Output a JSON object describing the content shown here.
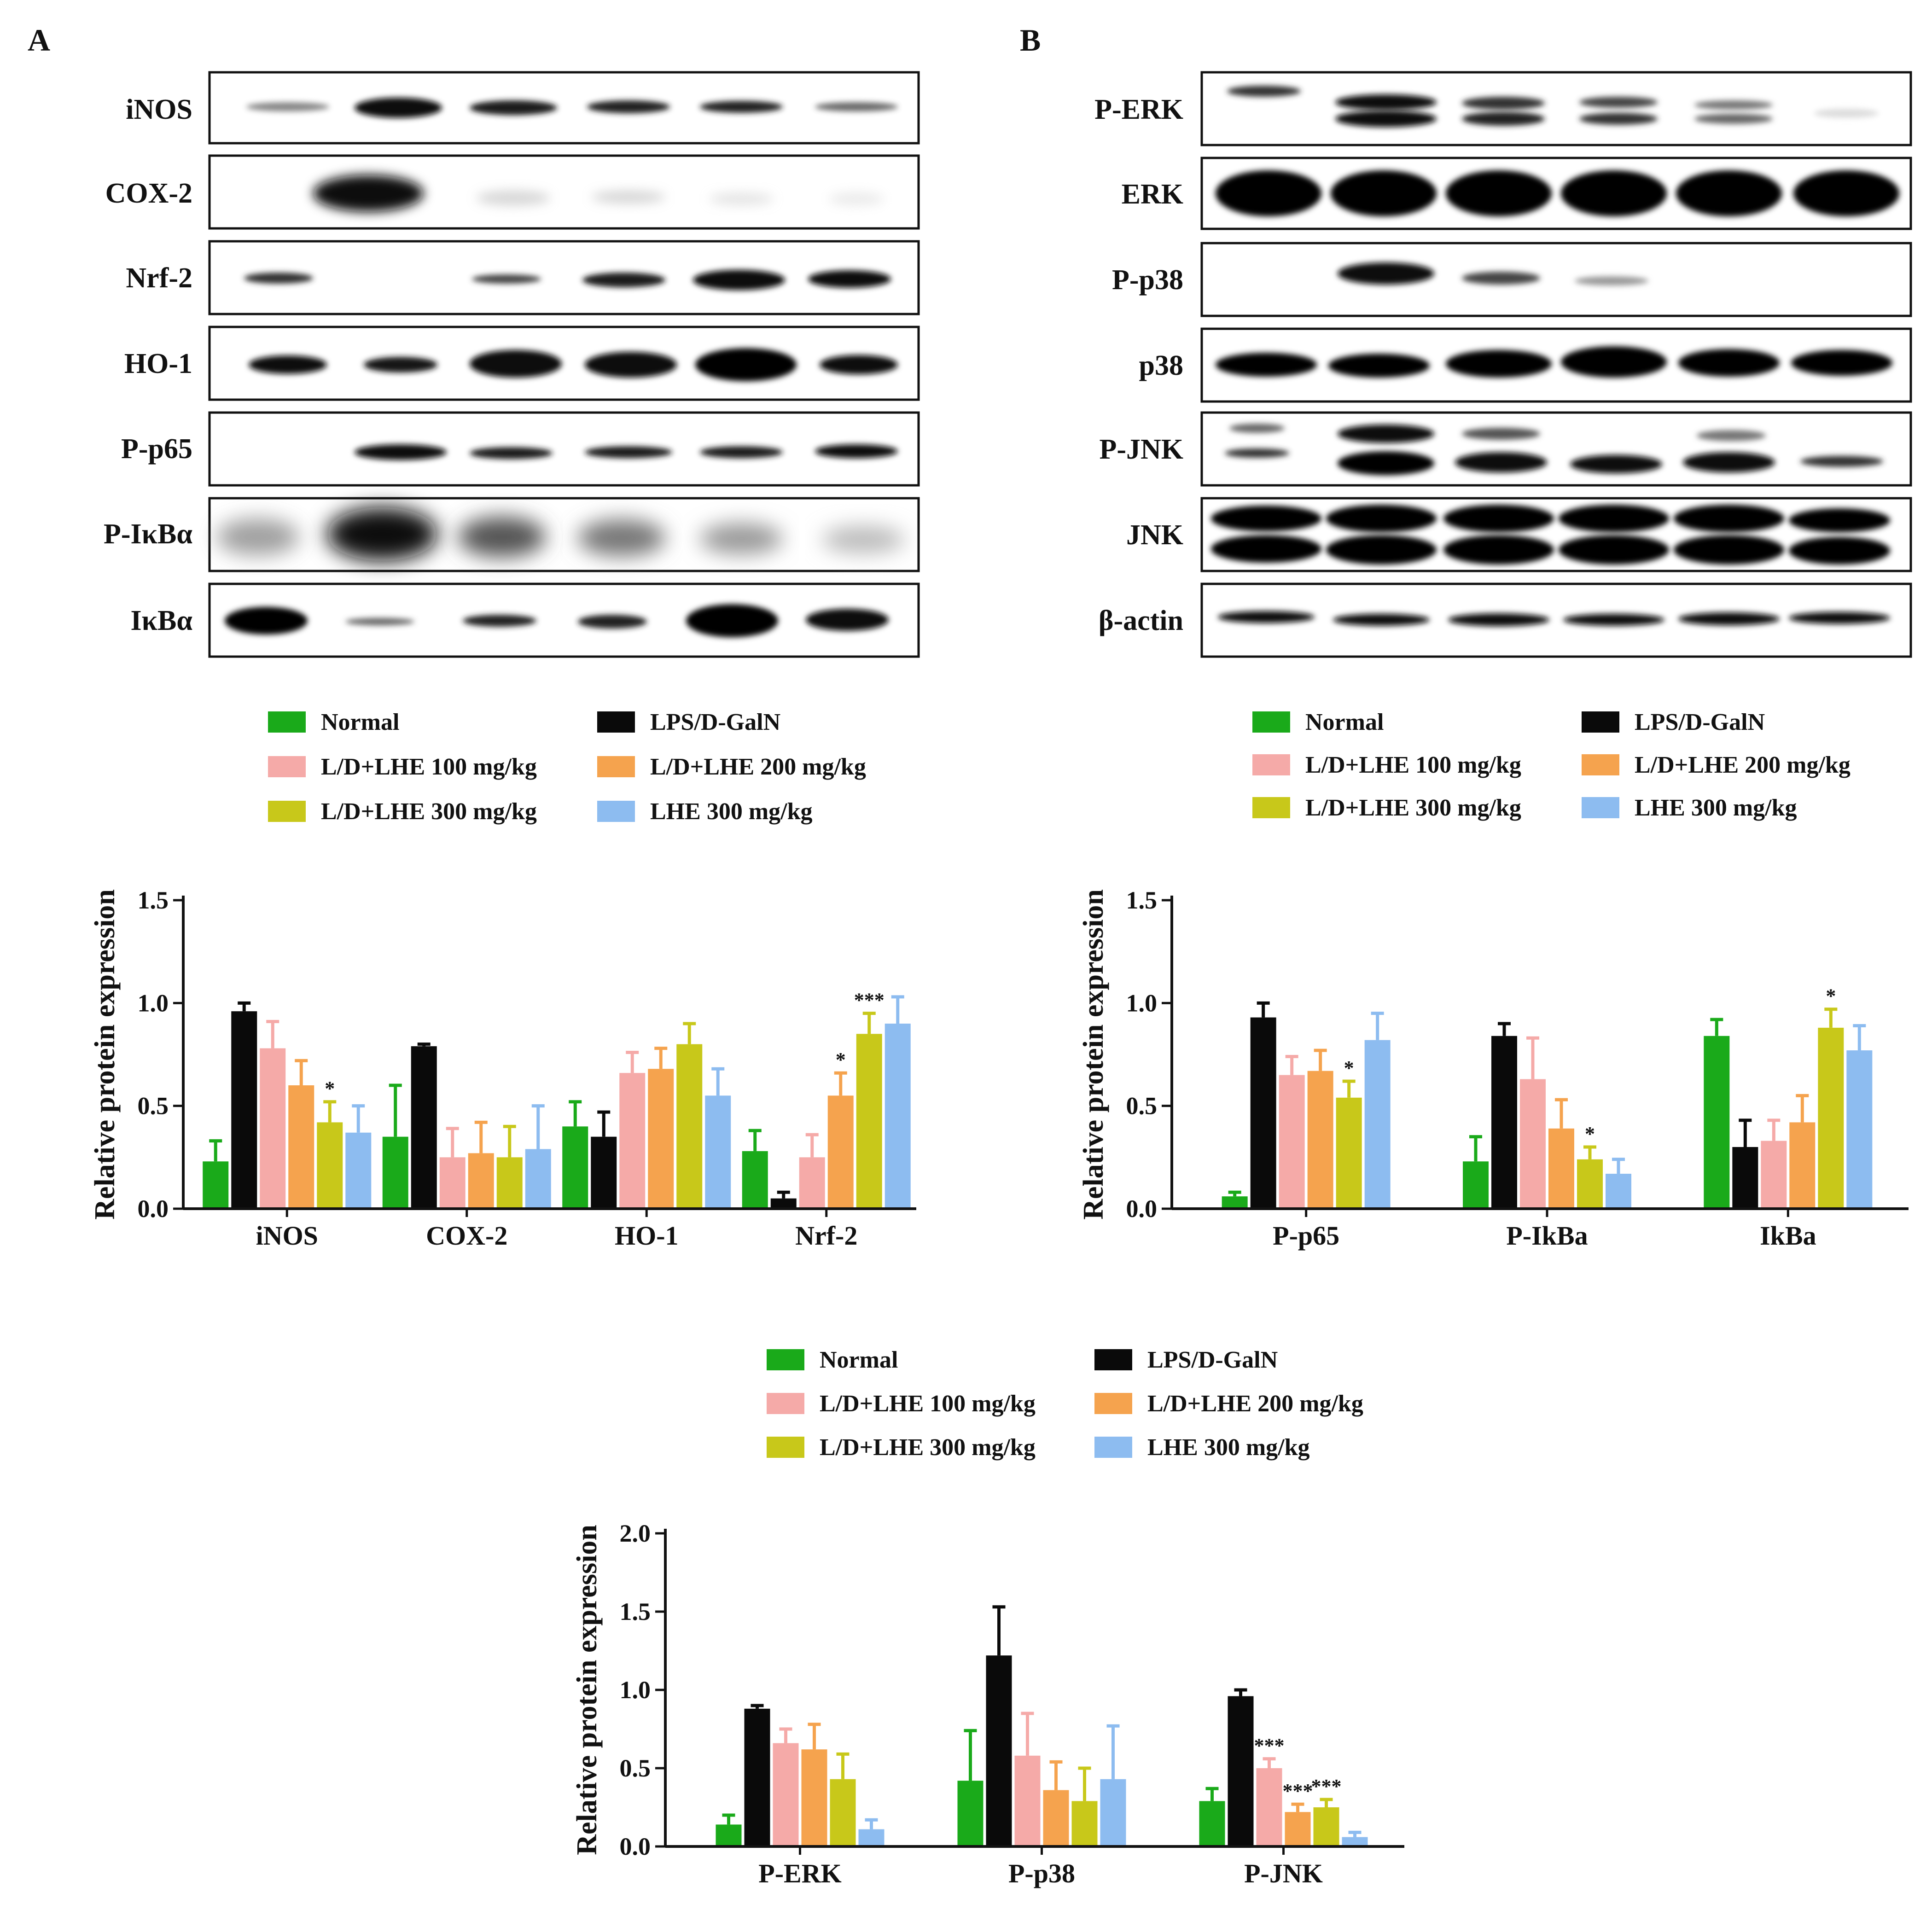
{
  "panels": [
    {
      "label": "A",
      "blot_labels": [
        "iNOS",
        "COX-2",
        "Nrf-2",
        "HO-1",
        "P-p65",
        "P-IκBα",
        "IκBα"
      ]
    },
    {
      "label": "B",
      "blot_labels": [
        "P-ERK",
        "ERK",
        "P-p38",
        "p38",
        "P-JNK",
        "JNK",
        "β-actin"
      ]
    }
  ],
  "legend": {
    "items": [
      {
        "name": "Normal",
        "color": "#1aaa1a"
      },
      {
        "name": "LPS/D-GalN",
        "color": "#0a0a0a"
      },
      {
        "name": "L/D+LHE 100 mg/kg",
        "color": "#f5aaa8"
      },
      {
        "name": "L/D+LHE 200 mg/kg",
        "color": "#f5a34e"
      },
      {
        "name": "L/D+LHE 300 mg/kg",
        "color": "#c8c81a"
      },
      {
        "name": "LHE 300 mg/kg",
        "color": "#8dbcf0"
      }
    ]
  },
  "chart_data": [
    {
      "type": "bar",
      "ylabel": "Relative protein expression",
      "ylim": [
        0,
        1.5
      ],
      "yticks": [
        "0.0",
        "0.5",
        "1.0",
        "1.5"
      ],
      "categories": [
        "iNOS",
        "COX-2",
        "HO-1",
        "Nrf-2"
      ],
      "series": [
        {
          "name": "Normal",
          "values": [
            0.23,
            0.35,
            0.4,
            0.28
          ],
          "errors": [
            0.1,
            0.25,
            0.12,
            0.1
          ]
        },
        {
          "name": "LPS/D-GalN",
          "values": [
            0.96,
            0.79,
            0.35,
            0.05
          ],
          "errors": [
            0.04,
            0.01,
            0.12,
            0.03
          ]
        },
        {
          "name": "L/D+LHE 100 mg/kg",
          "values": [
            0.78,
            0.25,
            0.66,
            0.25
          ],
          "errors": [
            0.13,
            0.14,
            0.1,
            0.11
          ]
        },
        {
          "name": "L/D+LHE 200 mg/kg",
          "values": [
            0.6,
            0.27,
            0.68,
            0.55
          ],
          "errors": [
            0.12,
            0.15,
            0.1,
            0.11
          ]
        },
        {
          "name": "L/D+LHE 300 mg/kg",
          "values": [
            0.42,
            0.25,
            0.8,
            0.85
          ],
          "errors": [
            0.1,
            0.15,
            0.1,
            0.1
          ]
        },
        {
          "name": "LHE 300 mg/kg",
          "values": [
            0.37,
            0.29,
            0.55,
            0.9
          ],
          "errors": [
            0.13,
            0.21,
            0.13,
            0.13
          ]
        }
      ],
      "annotations": [
        {
          "category": "iNOS",
          "series": "L/D+LHE 300 mg/kg",
          "text": "*"
        },
        {
          "category": "Nrf-2",
          "series": "L/D+LHE 200 mg/kg",
          "text": "*"
        },
        {
          "category": "Nrf-2",
          "series": "L/D+LHE 300 mg/kg",
          "text": "***"
        }
      ]
    },
    {
      "type": "bar",
      "ylabel": "Relative protein expression",
      "ylim": [
        0,
        1.5
      ],
      "yticks": [
        "0.0",
        "0.5",
        "1.0",
        "1.5"
      ],
      "categories": [
        "P-p65",
        "P-IkBa",
        "IkBa"
      ],
      "series": [
        {
          "name": "Normal",
          "values": [
            0.06,
            0.23,
            0.84
          ],
          "errors": [
            0.02,
            0.12,
            0.08
          ]
        },
        {
          "name": "LPS/D-GalN",
          "values": [
            0.93,
            0.84,
            0.3
          ],
          "errors": [
            0.07,
            0.06,
            0.13
          ]
        },
        {
          "name": "L/D+LHE 100 mg/kg",
          "values": [
            0.65,
            0.63,
            0.33
          ],
          "errors": [
            0.09,
            0.2,
            0.1
          ]
        },
        {
          "name": "L/D+LHE 200 mg/kg",
          "values": [
            0.67,
            0.39,
            0.42
          ],
          "errors": [
            0.1,
            0.14,
            0.13
          ]
        },
        {
          "name": "L/D+LHE 300 mg/kg",
          "values": [
            0.54,
            0.24,
            0.88
          ],
          "errors": [
            0.08,
            0.06,
            0.09
          ]
        },
        {
          "name": "LHE 300 mg/kg",
          "values": [
            0.82,
            0.17,
            0.77
          ],
          "errors": [
            0.13,
            0.07,
            0.12
          ]
        }
      ],
      "annotations": [
        {
          "category": "P-p65",
          "series": "L/D+LHE 300 mg/kg",
          "text": "*"
        },
        {
          "category": "P-IkBa",
          "series": "L/D+LHE 300 mg/kg",
          "text": "*"
        },
        {
          "category": "IkBa",
          "series": "L/D+LHE 300 mg/kg",
          "text": "*"
        }
      ]
    },
    {
      "type": "bar",
      "ylabel": "Relative protein expression",
      "ylim": [
        0,
        2.0
      ],
      "yticks": [
        "0.0",
        "0.5",
        "1.0",
        "1.5",
        "2.0"
      ],
      "categories": [
        "P-ERK",
        "P-p38",
        "P-JNK"
      ],
      "series": [
        {
          "name": "Normal",
          "values": [
            0.14,
            0.42,
            0.29
          ],
          "errors": [
            0.06,
            0.32,
            0.08
          ]
        },
        {
          "name": "LPS/D-GalN",
          "values": [
            0.88,
            1.22,
            0.96
          ],
          "errors": [
            0.02,
            0.31,
            0.04
          ]
        },
        {
          "name": "L/D+LHE 100 mg/kg",
          "values": [
            0.66,
            0.58,
            0.5
          ],
          "errors": [
            0.09,
            0.27,
            0.06
          ]
        },
        {
          "name": "L/D+LHE 200 mg/kg",
          "values": [
            0.62,
            0.36,
            0.22
          ],
          "errors": [
            0.16,
            0.18,
            0.05
          ]
        },
        {
          "name": "L/D+LHE 300 mg/kg",
          "values": [
            0.43,
            0.29,
            0.25
          ],
          "errors": [
            0.16,
            0.21,
            0.05
          ]
        },
        {
          "name": "LHE 300 mg/kg",
          "values": [
            0.11,
            0.43,
            0.06
          ],
          "errors": [
            0.06,
            0.34,
            0.03
          ]
        }
      ],
      "annotations": [
        {
          "category": "P-JNK",
          "series": "L/D+LHE 100 mg/kg",
          "text": "***"
        },
        {
          "category": "P-JNK",
          "series": "L/D+LHE 200 mg/kg",
          "text": "***"
        },
        {
          "category": "P-JNK",
          "series": "L/D+LHE 300 mg/kg",
          "text": "***"
        }
      ]
    }
  ]
}
